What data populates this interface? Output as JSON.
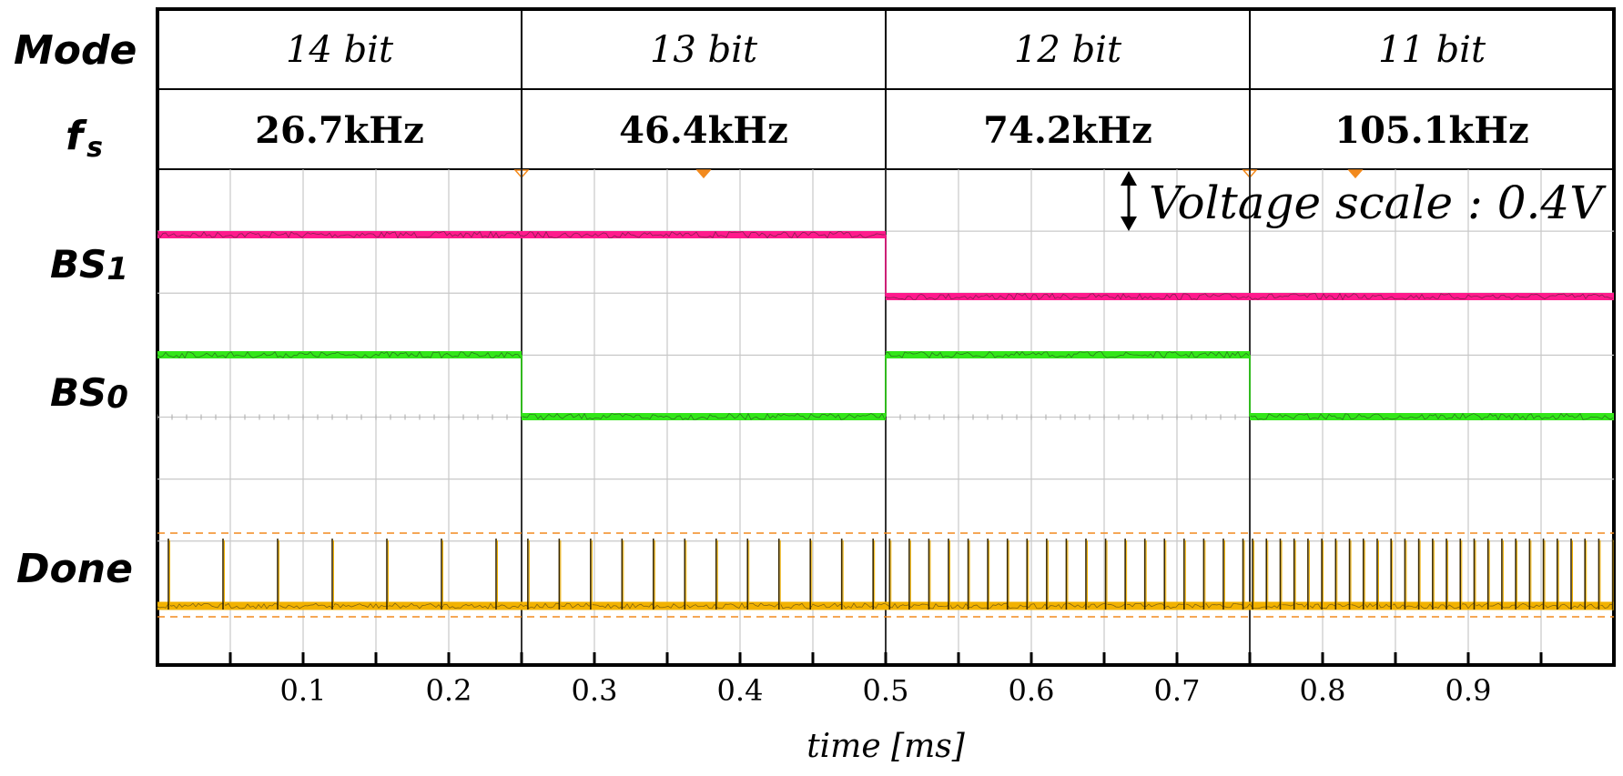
{
  "chart_data": {
    "type": "line",
    "title": "",
    "xlabel": "time [ms]",
    "xlim": [
      0,
      1.0
    ],
    "x_ticks": [
      "0.1",
      "0.2",
      "0.3",
      "0.4",
      "0.5",
      "0.6",
      "0.7",
      "0.8",
      "0.9"
    ],
    "header": {
      "mode_label": "Mode",
      "fs_label_main": "f",
      "fs_label_sub": "s",
      "modes": [
        "14 bit",
        "13 bit",
        "12 bit",
        "11 bit"
      ],
      "sample_rates": [
        "26.7kHz",
        "46.4kHz",
        "74.2kHz",
        "105.1kHz"
      ],
      "segment_bounds": [
        0,
        0.25,
        0.5,
        0.75,
        1.0
      ]
    },
    "voltage_scale": "Voltage scale : 0.4V",
    "series": [
      {
        "name": "BS1",
        "label_main": "BS",
        "label_sub": "1",
        "color": "#ff1a8c",
        "levels": [
          1,
          1,
          0,
          0
        ]
      },
      {
        "name": "BS0",
        "label_main": "BS",
        "label_sub": "0",
        "color": "#33e619",
        "levels": [
          1,
          0,
          1,
          0
        ]
      },
      {
        "name": "Done",
        "label_main": "Done",
        "label_sub": "",
        "color": "#f2b200",
        "pulse_intervals_ms": [
          0.0375,
          0.02155,
          0.01348,
          0.00951
        ]
      }
    ],
    "grid": true,
    "colors": {
      "grid": "#c8c8c8",
      "frame": "#000000",
      "divider": "#333333",
      "trigger": "#f28a1e"
    }
  }
}
